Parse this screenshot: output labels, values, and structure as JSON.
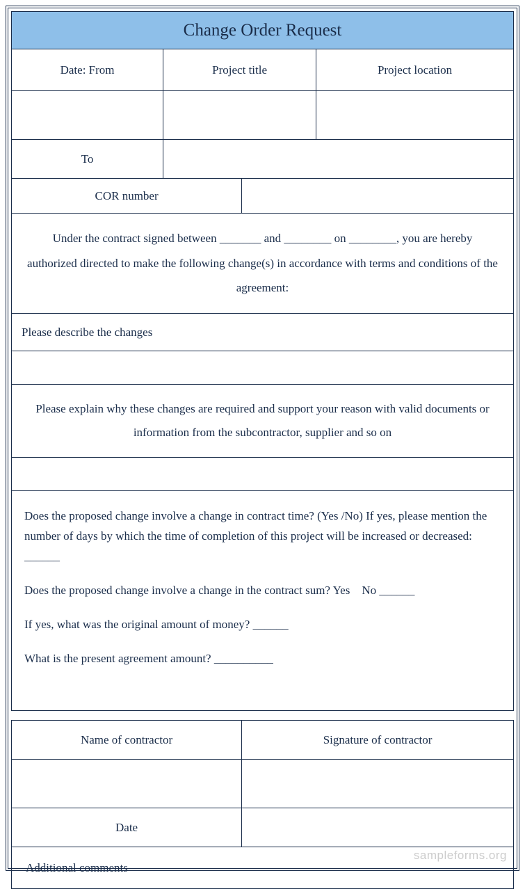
{
  "colors": {
    "header_bg": "#8ebfe9",
    "border": "#1a2d4a",
    "text": "#1a2d4a",
    "watermark": "#cccccc"
  },
  "title": "Change Order Request",
  "row1": {
    "date_from": "Date: From",
    "project_title": "Project title",
    "project_location": "Project location"
  },
  "to_label": "To",
  "cor_label": "COR number",
  "contract_text": "Under the contract signed between _______ and ________ on ________, you are hereby authorized directed to make the following change(s) in accordance with terms and conditions of the agreement:",
  "describe_label": "Please describe the changes",
  "explain_text": "Please explain why these changes are required and support your reason with valid documents or information from the subcontractor, supplier and so on",
  "q1": "Does the proposed change involve a change in contract time? (Yes /No) If yes, please mention the number of days by which the time of completion of this project will be increased or decreased: ______",
  "q2": "Does the proposed change involve a change in the contract sum? Yes    No ______",
  "q3": "If yes, what was the original amount of money? ______",
  "q4": "What is the present agreement amount? __________",
  "sig": {
    "name": "Name of contractor",
    "signature": "Signature of contractor"
  },
  "date_label": "Date",
  "comments_label": "Additional comments",
  "watermark": "sampleforms.org"
}
